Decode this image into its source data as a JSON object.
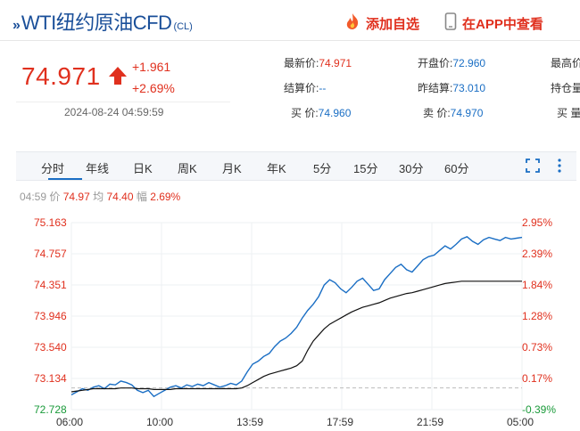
{
  "header": {
    "title": "WTI纽约原油CFD",
    "code": "(CL)",
    "add_watchlist": "添加自选",
    "view_in_app": "在APP中查看"
  },
  "quote": {
    "price": "74.971",
    "change": "+1.961",
    "change_pct": "+2.69%",
    "timestamp": "2024-08-24 04:59:59"
  },
  "stats": {
    "latest_label": "最新价:",
    "latest": "74.971",
    "open_label": "开盘价:",
    "open": "72.960",
    "high_label": "最高价",
    "settle_label": "结算价:",
    "settle": "--",
    "prev_settle_label": "昨结算:",
    "prev_settle": "73.010",
    "position_label": "持仓量",
    "bid_label": "买  价:",
    "bid": "74.960",
    "ask_label": "卖  价:",
    "ask": "74.970",
    "buy_vol_label": "买  量"
  },
  "tabs": [
    "分时",
    "年线",
    "日K",
    "周K",
    "月K",
    "年K",
    "5分",
    "15分",
    "30分",
    "60分"
  ],
  "info_line": {
    "time": "04:59",
    "price_label": "价",
    "price": "74.97",
    "avg_label": "均",
    "avg": "74.40",
    "amp_label": "幅",
    "amp": "2.69%"
  },
  "colors": {
    "up": "#e0301e",
    "down": "#1a9a3a",
    "brand": "#1a4f99",
    "line": "#1a6ec4"
  },
  "chart_data": {
    "type": "line",
    "title": "",
    "y_ticks": [
      "75.163",
      "74.757",
      "74.351",
      "73.946",
      "73.540",
      "73.134",
      "72.728"
    ],
    "y_right_ticks": [
      "2.95%",
      "2.39%",
      "1.84%",
      "1.28%",
      "0.73%",
      "0.17%",
      "-0.39%"
    ],
    "x_ticks": [
      "06:00",
      "10:00",
      "13:59",
      "17:59",
      "21:59",
      "05:00"
    ],
    "ylim": [
      72.728,
      75.163
    ],
    "prev_settle": 73.01,
    "series": [
      {
        "name": "价",
        "values": [
          72.92,
          72.96,
          73.0,
          72.98,
          73.02,
          73.04,
          73.0,
          73.06,
          73.05,
          73.1,
          73.08,
          73.05,
          72.98,
          72.95,
          72.98,
          72.9,
          72.94,
          72.98,
          73.02,
          73.04,
          73.01,
          73.05,
          73.03,
          73.06,
          73.04,
          73.08,
          73.05,
          73.02,
          73.04,
          73.07,
          73.05,
          73.1,
          73.22,
          73.32,
          73.36,
          73.42,
          73.46,
          73.55,
          73.62,
          73.66,
          73.72,
          73.8,
          73.92,
          74.02,
          74.1,
          74.2,
          74.35,
          74.42,
          74.38,
          74.3,
          74.25,
          74.32,
          74.4,
          74.44,
          74.36,
          74.28,
          74.3,
          74.42,
          74.5,
          74.58,
          74.62,
          74.55,
          74.52,
          74.6,
          74.68,
          74.72,
          74.74,
          74.8,
          74.86,
          74.82,
          74.88,
          74.95,
          74.98,
          74.92,
          74.88,
          74.94,
          74.97,
          74.95,
          74.93,
          74.97,
          74.95,
          74.96,
          74.97
        ]
      },
      {
        "name": "均",
        "values": [
          72.96,
          72.97,
          72.98,
          72.99,
          73.0,
          73.0,
          73.0,
          73.0,
          73.0,
          73.01,
          73.01,
          73.01,
          73.0,
          73.0,
          73.0,
          72.99,
          72.99,
          72.99,
          72.99,
          73.0,
          73.0,
          73.0,
          73.0,
          73.0,
          73.0,
          73.0,
          73.0,
          73.0,
          73.0,
          73.0,
          73.0,
          73.01,
          73.04,
          73.08,
          73.12,
          73.16,
          73.19,
          73.21,
          73.23,
          73.25,
          73.27,
          73.3,
          73.36,
          73.5,
          73.62,
          73.7,
          73.78,
          73.84,
          73.88,
          73.92,
          73.96,
          74.0,
          74.03,
          74.06,
          74.08,
          74.1,
          74.12,
          74.15,
          74.18,
          74.2,
          74.22,
          74.24,
          74.25,
          74.27,
          74.29,
          74.31,
          74.33,
          74.35,
          74.37,
          74.38,
          74.39,
          74.4,
          74.4,
          74.4,
          74.4,
          74.4,
          74.4,
          74.4,
          74.4,
          74.4,
          74.4,
          74.4,
          74.4
        ]
      }
    ]
  }
}
